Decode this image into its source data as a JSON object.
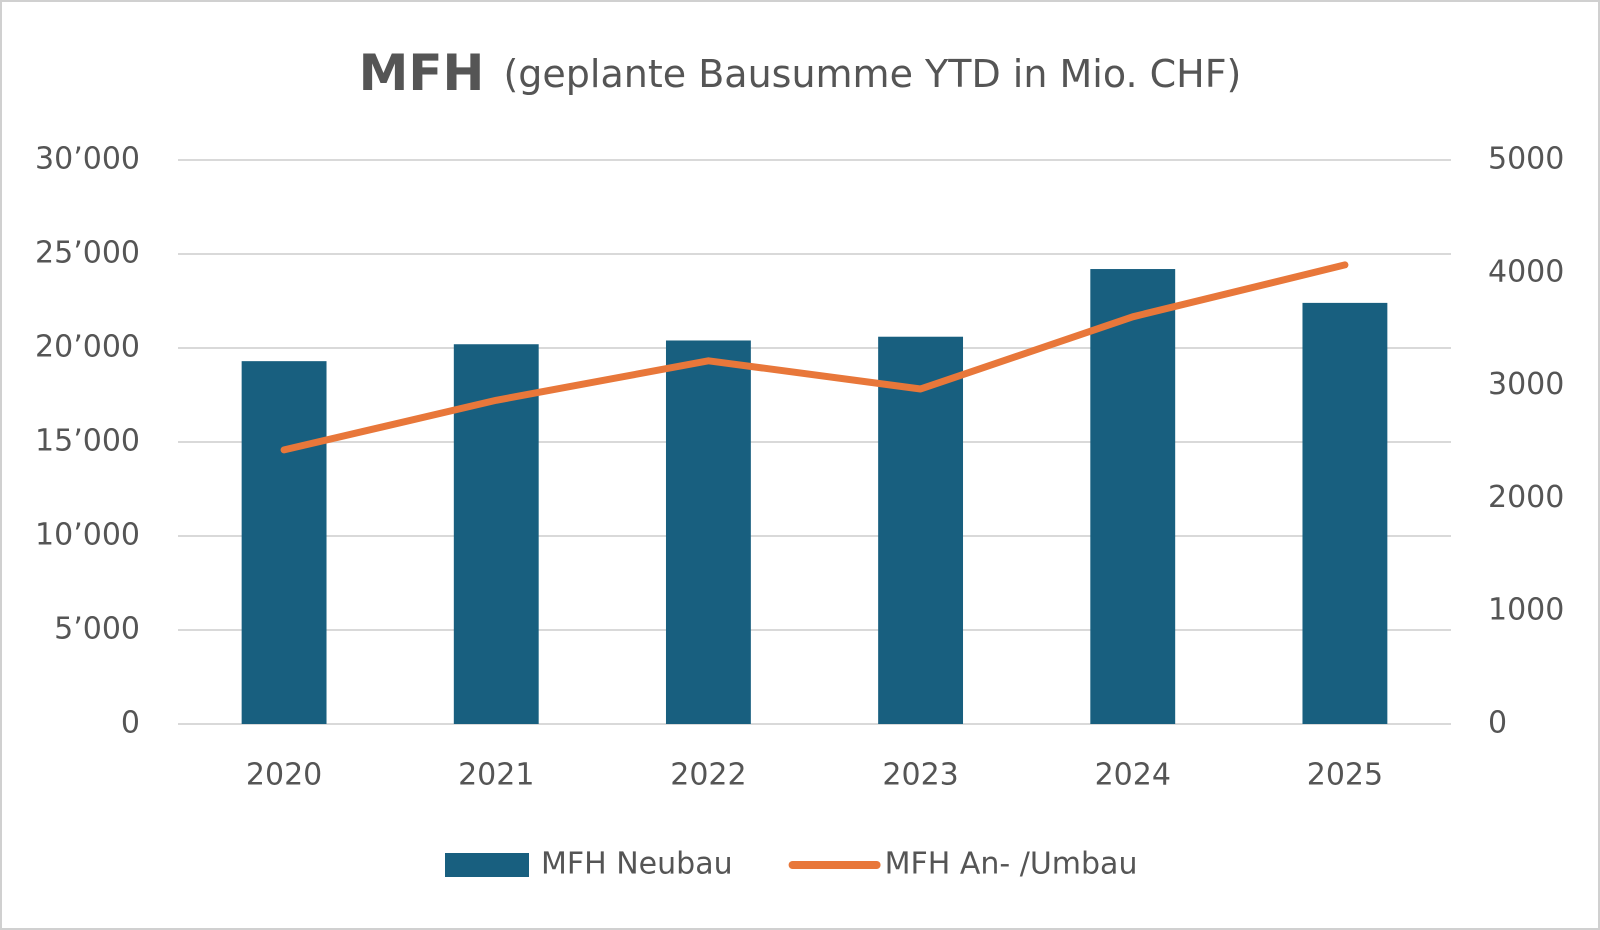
{
  "chart_data": {
    "type": "bar-line",
    "title": "MFH",
    "subtitle": "(geplante Bausumme YTD in Mio. CHF)",
    "categories": [
      "2020",
      "2021",
      "2022",
      "2023",
      "2024",
      "2025"
    ],
    "series": [
      {
        "name": "MFH Neubau",
        "type": "bar",
        "color": "#185f7f",
        "values": [
          19300,
          20200,
          20400,
          20600,
          24200,
          22400
        ]
      },
      {
        "name": "MFH An- /Umbau",
        "type": "line",
        "axis": "y2",
        "color": "#e8773a",
        "values": [
          2430,
          2870,
          3220,
          2970,
          3610,
          4070
        ]
      }
    ],
    "ylim": [
      0,
      30000
    ],
    "yticks": [
      0,
      {
        "value": 5000,
        "label": "5’000"
      },
      {
        "value": 10000,
        "label": "10’000"
      },
      {
        "value": 15000,
        "label": "15’000"
      },
      {
        "value": 20000,
        "label": "20’000"
      },
      {
        "value": 25000,
        "label": "25’000"
      },
      {
        "value": 30000,
        "label": "30’000"
      }
    ],
    "y2lim": [
      0,
      5000
    ],
    "y2ticks": [
      0,
      1000,
      2000,
      3000,
      4000,
      5000
    ],
    "grid": true,
    "legend": "bottom"
  }
}
